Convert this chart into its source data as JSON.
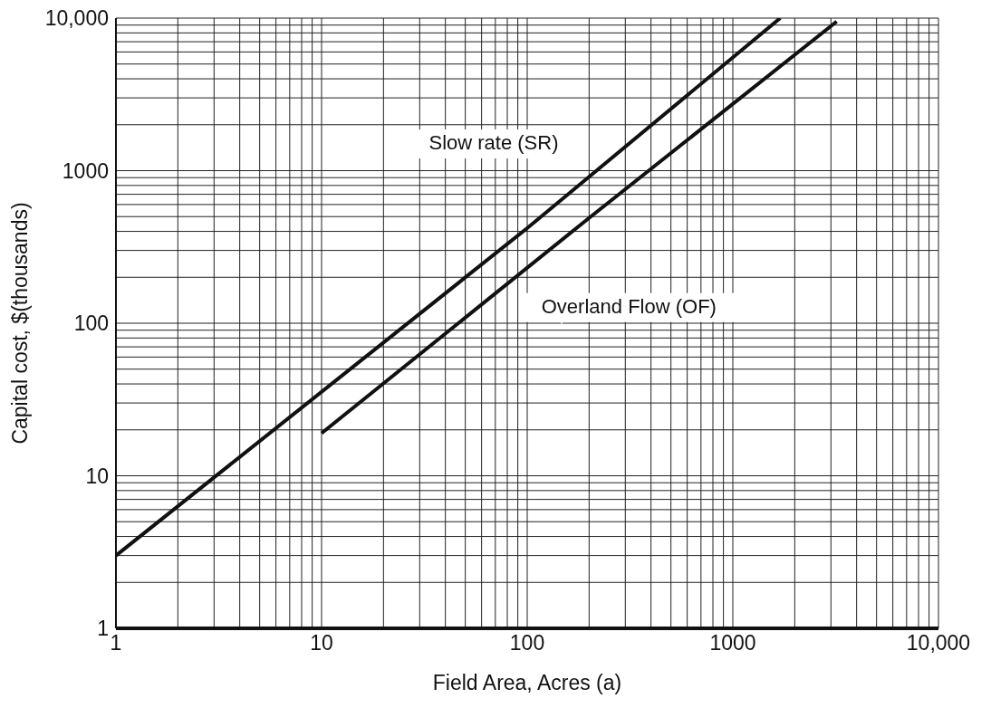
{
  "chart_data": {
    "type": "line",
    "xlabel": "Field Area, Acres (a)",
    "ylabel": "Capital cost, $(thousands)",
    "log": "xy",
    "grid": true,
    "legend": false,
    "marker": "none",
    "line_style": "solid",
    "xlim": [
      1,
      10000
    ],
    "ylim": [
      1,
      10000
    ],
    "xticks": [
      1,
      {
        "value": 2,
        "label": null
      },
      {
        "value": 3,
        "label": null
      },
      {
        "value": 4,
        "label": null
      },
      {
        "value": 5,
        "label": null
      },
      {
        "value": 6,
        "label": null
      },
      {
        "value": 7,
        "label": null
      },
      {
        "value": 8,
        "label": null
      },
      {
        "value": 9,
        "label": null
      },
      10,
      {
        "value": 20,
        "label": null
      },
      {
        "value": 30,
        "label": null
      },
      {
        "value": 40,
        "label": null
      },
      {
        "value": 50,
        "label": null
      },
      {
        "value": 60,
        "label": null
      },
      {
        "value": 70,
        "label": null
      },
      {
        "value": 80,
        "label": null
      },
      {
        "value": 90,
        "label": null
      },
      100,
      {
        "value": 200,
        "label": null
      },
      {
        "value": 300,
        "label": null
      },
      {
        "value": 400,
        "label": null
      },
      {
        "value": 500,
        "label": null
      },
      {
        "value": 600,
        "label": null
      },
      {
        "value": 700,
        "label": null
      },
      {
        "value": 800,
        "label": null
      },
      {
        "value": 900,
        "label": null
      },
      1000,
      {
        "value": 2000,
        "label": null
      },
      {
        "value": 3000,
        "label": null
      },
      {
        "value": 4000,
        "label": null
      },
      {
        "value": 5000,
        "label": null
      },
      {
        "value": 6000,
        "label": null
      },
      {
        "value": 7000,
        "label": null
      },
      {
        "value": 8000,
        "label": null
      },
      {
        "value": 9000,
        "label": null
      },
      {
        "value": 10000,
        "label": "10,000"
      }
    ],
    "yticks": [
      1,
      {
        "value": 2,
        "label": null
      },
      {
        "value": 3,
        "label": null
      },
      {
        "value": 4,
        "label": null
      },
      {
        "value": 5,
        "label": null
      },
      {
        "value": 6,
        "label": null
      },
      {
        "value": 7,
        "label": null
      },
      {
        "value": 8,
        "label": null
      },
      {
        "value": 9,
        "label": null
      },
      10,
      {
        "value": 20,
        "label": null
      },
      {
        "value": 30,
        "label": null
      },
      {
        "value": 40,
        "label": null
      },
      {
        "value": 50,
        "label": null
      },
      {
        "value": 60,
        "label": null
      },
      {
        "value": 70,
        "label": null
      },
      {
        "value": 80,
        "label": null
      },
      {
        "value": 90,
        "label": null
      },
      100,
      {
        "value": 200,
        "label": null
      },
      {
        "value": 300,
        "label": null
      },
      {
        "value": 400,
        "label": null
      },
      {
        "value": 500,
        "label": null
      },
      {
        "value": 600,
        "label": null
      },
      {
        "value": 700,
        "label": null
      },
      {
        "value": 800,
        "label": null
      },
      {
        "value": 900,
        "label": null
      },
      1000,
      {
        "value": 2000,
        "label": null
      },
      {
        "value": 3000,
        "label": null
      },
      {
        "value": 4000,
        "label": null
      },
      {
        "value": 5000,
        "label": null
      },
      {
        "value": 6000,
        "label": null
      },
      {
        "value": 7000,
        "label": null
      },
      {
        "value": 8000,
        "label": null
      },
      {
        "value": 9000,
        "label": null
      },
      {
        "value": 10000,
        "label": "10,000"
      }
    ],
    "series": [
      {
        "name": "Slow rate (SR)",
        "color": "#111111",
        "x": [
          1,
          100,
          1700
        ],
        "values": [
          3,
          420,
          10000
        ]
      },
      {
        "name": "Overland Flow (OF)",
        "color": "#111111",
        "x": [
          10,
          200,
          3200
        ],
        "values": [
          19,
          490,
          9500
        ]
      }
    ]
  }
}
